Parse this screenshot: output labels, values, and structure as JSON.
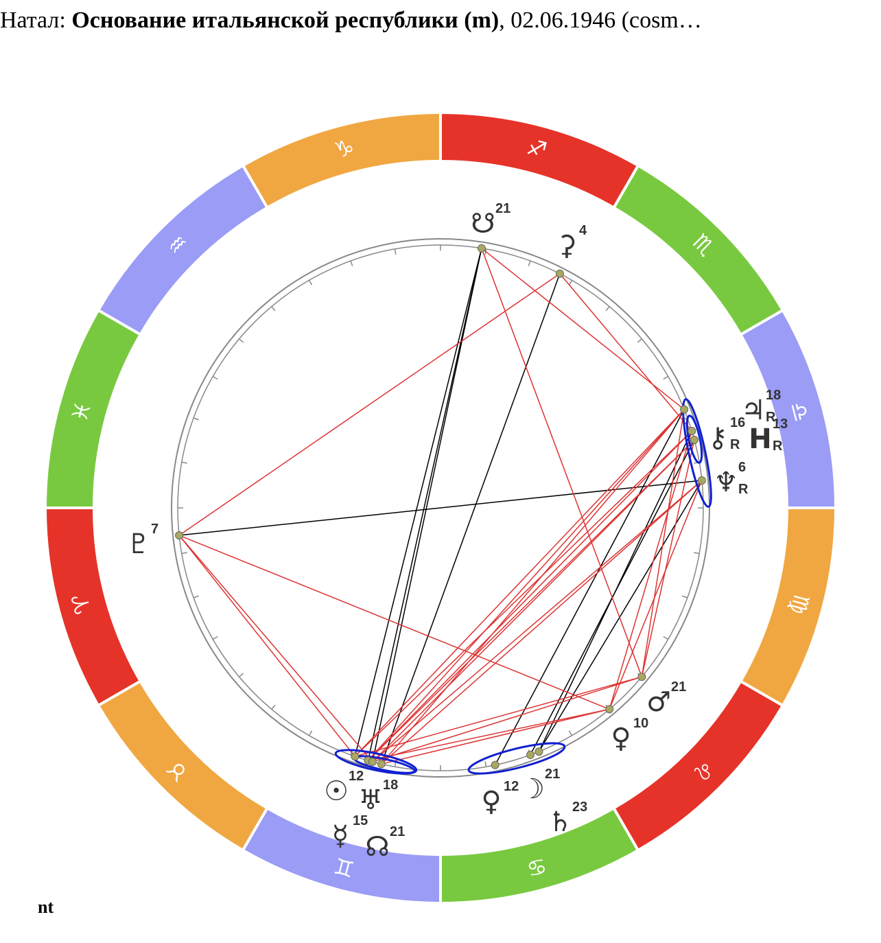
{
  "header": {
    "prefix": "Натал: ",
    "name": "Основание итальянской республики (m)",
    "suffix": ", 02.06.1946 (cosm…"
  },
  "zodiac": [
    "♑",
    "♒",
    "♓",
    "♈",
    "♉",
    "♊",
    "♋",
    "♌",
    "♍",
    "♎",
    "♏",
    "♐"
  ],
  "planets": [
    {
      "glyph": "☋",
      "degree": 21
    },
    {
      "glyph": "⚳",
      "degree": 4
    },
    {
      "glyph": "♃",
      "degree": 18,
      "retro": "R"
    },
    {
      "glyph": "⚷",
      "degree": 16,
      "retro": "R"
    },
    {
      "glyph": "H",
      "degree": 13,
      "retro": "R"
    },
    {
      "glyph": "♆",
      "degree": 6,
      "retro": "R"
    },
    {
      "glyph": "♇",
      "degree": 7
    },
    {
      "glyph": "♂",
      "degree": 21
    },
    {
      "glyph": "♀",
      "degree": 10
    },
    {
      "glyph": "♀",
      "degree": 12
    },
    {
      "glyph": "☽",
      "degree": 21
    },
    {
      "glyph": "♄",
      "degree": 23
    },
    {
      "glyph": "☉",
      "degree": 12
    },
    {
      "glyph": "♅",
      "degree": 18
    },
    {
      "glyph": "☿",
      "degree": 15
    },
    {
      "glyph": "☊",
      "degree": 21
    }
  ],
  "footer": "nt"
}
